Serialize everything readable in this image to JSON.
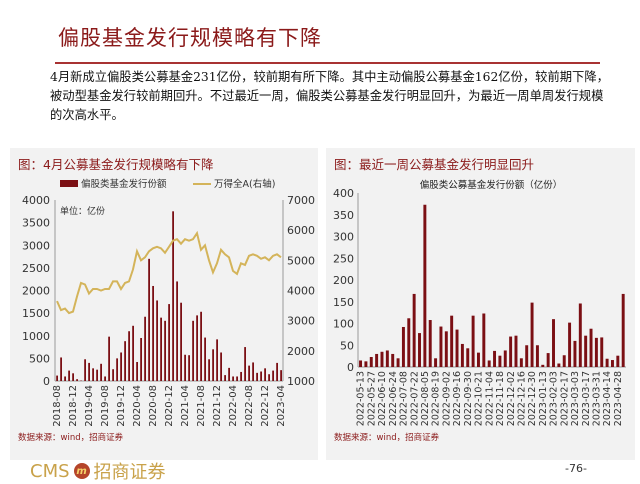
{
  "page": {
    "title": "偏股基金发行规模略有下降",
    "body": "4月新成立偏股类公募基金231亿份，较前期有所下降。其中主动偏股公募基金162亿份，较前期下降，被动型基金发行较前期回升。不过最近一周，偏股类公募基金发行明显回升，为最近一周单周发行规模的次高水平。",
    "page_number": "-76-",
    "logo_text": "CMS",
    "logo_cn": "招商证券"
  },
  "colors": {
    "bar": "#7b0f14",
    "line": "#d4b45a",
    "title": "#8b1a1a"
  },
  "chart_data": [
    {
      "type": "bar+line",
      "title": "图：4月公募基金发行规模略有下降",
      "unit_note": "单位：亿份",
      "source": "数据来源：wind，招商证券",
      "legend": [
        "偏股类基金发行份额",
        "万得全A(右轴)"
      ],
      "legend_position": "top",
      "ylim": [
        0,
        4000
      ],
      "y2lim": [
        1000,
        7000
      ],
      "yticks": [
        "0",
        "500",
        "1000",
        "1500",
        "2000",
        "2500",
        "3000",
        "3500",
        "4000"
      ],
      "y2ticks": [
        "1000",
        "2000",
        "3000",
        "4000",
        "5000",
        "6000",
        "7000"
      ],
      "xtick_labels": [
        "2018-08",
        "2018-12",
        "2019-04",
        "2019-08",
        "2019-12",
        "2020-04",
        "2020-08",
        "2020-12",
        "2021-04",
        "2021-08",
        "2021-12",
        "2022-04",
        "2022-08",
        "2022-12",
        "2023-04"
      ],
      "x_start": "2018-08",
      "bars": [
        120,
        520,
        100,
        230,
        170,
        40,
        10,
        480,
        400,
        280,
        250,
        380,
        100,
        980,
        260,
        500,
        630,
        880,
        1100,
        1220,
        420,
        950,
        1420,
        2700,
        2100,
        1780,
        1400,
        1330,
        1700,
        3750,
        2200,
        1730,
        580,
        570,
        1330,
        1450,
        1530,
        960,
        480,
        700,
        920,
        630,
        130,
        290,
        100,
        100,
        200,
        750,
        340,
        410,
        180,
        210,
        280,
        150,
        230,
        400,
        240
      ],
      "line": [
        3650,
        3350,
        3400,
        3250,
        3300,
        3800,
        4250,
        4200,
        3900,
        4050,
        4050,
        4000,
        4050,
        4050,
        4300,
        4300,
        4050,
        4250,
        4300,
        4700,
        5300,
        5000,
        5100,
        5300,
        5400,
        5450,
        5400,
        5250,
        5450,
        5650,
        5700,
        5550,
        5700,
        5650,
        5700,
        5900,
        5350,
        5500,
        5000,
        4600,
        4900,
        5350,
        5200,
        5100,
        4650,
        4550,
        4900,
        4850,
        5150,
        5200,
        5150,
        5050,
        5100,
        5000,
        5150,
        5200,
        5100
      ]
    },
    {
      "type": "bar",
      "title": "图：最近一周公募基金发行明显回升",
      "subtitle": "偏股类公募基金发行份额（亿份）",
      "source": "数据来源：wind，招商证券",
      "ylim": [
        0,
        400
      ],
      "yticks": [
        "0",
        "50",
        "100",
        "150",
        "200",
        "250",
        "300",
        "350",
        "400"
      ],
      "xtick_labels": [
        "2022-05-13",
        "2022-05-27",
        "2022-06-10",
        "2022-06-24",
        "2022-07-08",
        "2022-07-22",
        "2022-08-05",
        "2022-08-19",
        "2022-09-02",
        "2022-09-16",
        "2022-09-30",
        "2022-10-21",
        "2022-11-04",
        "2022-11-18",
        "2022-12-02",
        "2022-12-16",
        "2022-12-30",
        "2023-01-13",
        "2023-02-03",
        "2023-02-17",
        "2023-03-03",
        "2023-03-17",
        "2023-03-31",
        "2023-04-14",
        "2023-04-28"
      ],
      "values": [
        15,
        13,
        23,
        30,
        35,
        38,
        30,
        20,
        92,
        112,
        168,
        78,
        373,
        108,
        20,
        93,
        82,
        118,
        86,
        53,
        43,
        118,
        33,
        123,
        15,
        37,
        26,
        38,
        70,
        72,
        20,
        50,
        148,
        50,
        5,
        32,
        110,
        8,
        27,
        102,
        60,
        146,
        72,
        88,
        67,
        68,
        19,
        16,
        26,
        168
      ]
    }
  ]
}
